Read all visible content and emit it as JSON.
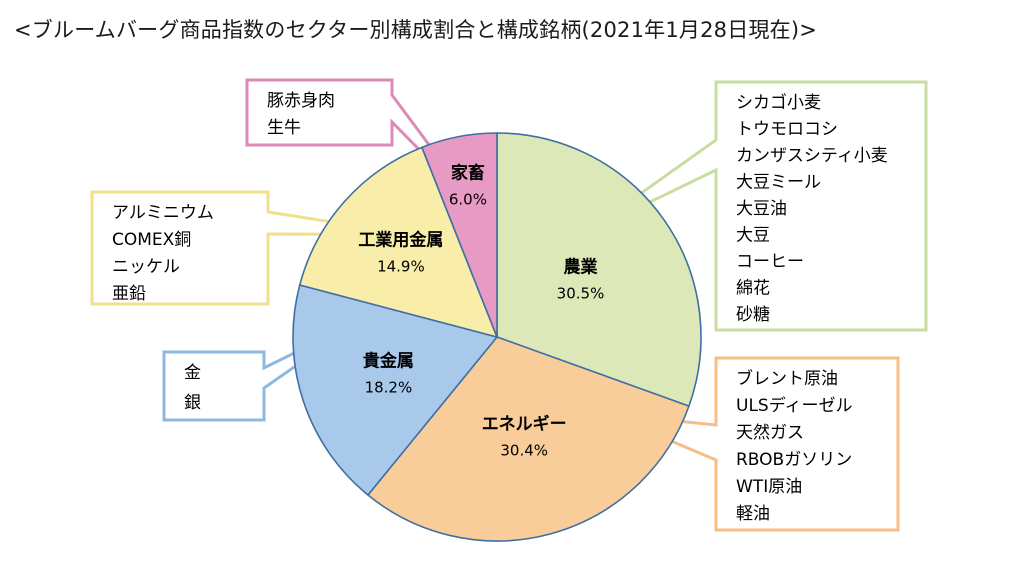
{
  "title": "<ブルームバーグ商品指数のセクター別構成割合と構成銘柄(2021年1月28日現在)>",
  "chart_data": {
    "type": "pie",
    "title": "<ブルームバーグ商品指数のセクター別構成割合と構成銘柄(2021年1月28日現在)>",
    "slices": [
      {
        "label": "農業",
        "value": 30.5,
        "value_label": "30.5%",
        "color": "#dde8b8",
        "box_color": "#c9dda1",
        "components": [
          "シカゴ小麦",
          "トウモロコシ",
          "カンザスシティ小麦",
          "大豆ミール",
          "大豆油",
          "大豆",
          "コーヒー",
          "綿花",
          "砂糖"
        ]
      },
      {
        "label": "エネルギー",
        "value": 30.4,
        "value_label": "30.4%",
        "color": "#f9cd9a",
        "box_color": "#f6bd86",
        "components": [
          "ブレント原油",
          "ULSディーゼル",
          "天然ガス",
          "RBOBガソリン",
          "WTI原油",
          "軽油"
        ]
      },
      {
        "label": "貴金属",
        "value": 18.2,
        "value_label": "18.2%",
        "color": "#a9c9ea",
        "box_color": "#8fb8e0",
        "components": [
          "金",
          "銀"
        ]
      },
      {
        "label": "工業用金属",
        "value": 14.9,
        "value_label": "14.9%",
        "color": "#f8eeaa",
        "box_color": "#f0e08a",
        "components": [
          "アルミニウム",
          "COMEX銅",
          "ニッケル",
          "亜鉛"
        ]
      },
      {
        "label": "家畜",
        "value": 6.0,
        "value_label": "6.0%",
        "color": "#e79ac3",
        "box_color": "#de8ab7",
        "components": [
          "豚赤身肉",
          "生牛"
        ]
      }
    ],
    "start_angle_deg": 0,
    "direction": "clockwise",
    "legend": "none"
  }
}
